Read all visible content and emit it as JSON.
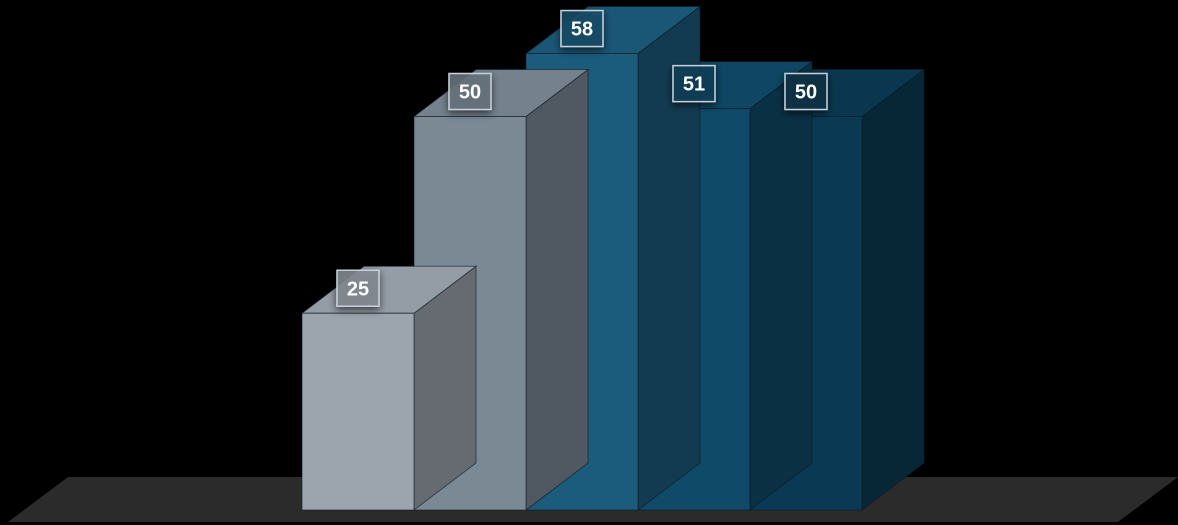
{
  "chart_data": {
    "type": "bar",
    "title": "",
    "xlabel": "",
    "ylabel": "",
    "categories": [
      "",
      "",
      "",
      "",
      ""
    ],
    "values": [
      25,
      50,
      58,
      51,
      50
    ],
    "data_labels": [
      "25",
      "50",
      "58",
      "51",
      "50"
    ],
    "ylim": [
      0,
      58
    ],
    "grid": false,
    "legend": "none",
    "style": "3d",
    "bar_colors": [
      "#9ca4ae",
      "#7b8995",
      "#1b5b7c",
      "#0f4a68",
      "#0a3a53"
    ],
    "background": "#000000",
    "floor_color": "#2b2b2b"
  }
}
